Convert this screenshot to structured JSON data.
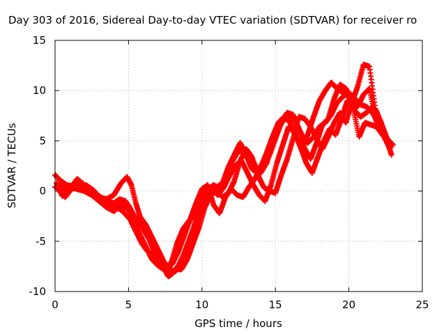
{
  "chart_data": {
    "type": "scatter",
    "title": "Day 303 of 2016, Sidereal Day-to-day VTEC variation (SDTVAR) for receiver ro",
    "xlabel": "GPS time / hours",
    "ylabel": "SDTVAR / TECUs",
    "xlim": [
      0,
      25
    ],
    "ylim": [
      -10,
      15
    ],
    "xticks": [
      "0",
      "5",
      "10",
      "15",
      "20",
      "25"
    ],
    "yticks": [
      "-10",
      "-5",
      "0",
      "5",
      "10",
      "15"
    ],
    "grid": true,
    "marker": "plus",
    "color": "#ff0000",
    "series": [
      {
        "points": [
          [
            0.0,
            1.6
          ],
          [
            0.4,
            1.0
          ],
          [
            0.8,
            0.6
          ],
          [
            1.2,
            0.5
          ],
          [
            1.6,
            0.4
          ],
          [
            2.0,
            0.3
          ],
          [
            2.5,
            -0.2
          ],
          [
            3.0,
            -0.8
          ],
          [
            3.5,
            -1.4
          ],
          [
            4.0,
            -1.8
          ],
          [
            4.5,
            -1.2
          ],
          [
            5.0,
            -1.4
          ],
          [
            5.4,
            -2.6
          ],
          [
            5.8,
            -3.4
          ],
          [
            6.2,
            -4.0
          ],
          [
            6.6,
            -5.0
          ],
          [
            7.0,
            -6.2
          ],
          [
            7.4,
            -7.6
          ],
          [
            7.7,
            -8.5
          ],
          [
            8.0,
            -8.2
          ],
          [
            8.4,
            -7.4
          ],
          [
            8.8,
            -6.2
          ],
          [
            9.2,
            -4.6
          ],
          [
            9.6,
            -3.2
          ],
          [
            10.0,
            -1.2
          ],
          [
            10.4,
            0.2
          ],
          [
            10.8,
            0.6
          ],
          [
            11.2,
            0.2
          ],
          [
            11.6,
            1.0
          ],
          [
            12.0,
            2.8
          ],
          [
            12.4,
            3.8
          ],
          [
            12.8,
            4.2
          ],
          [
            13.2,
            3.8
          ],
          [
            13.6,
            2.6
          ],
          [
            14.0,
            1.8
          ],
          [
            14.4,
            2.8
          ],
          [
            14.8,
            4.6
          ],
          [
            15.2,
            6.2
          ],
          [
            15.6,
            7.2
          ],
          [
            16.0,
            7.5
          ],
          [
            16.4,
            6.8
          ],
          [
            16.8,
            5.6
          ],
          [
            17.2,
            4.8
          ],
          [
            17.6,
            5.4
          ],
          [
            18.0,
            6.4
          ],
          [
            18.4,
            6.8
          ],
          [
            18.8,
            7.6
          ],
          [
            19.2,
            8.8
          ],
          [
            19.6,
            9.4
          ],
          [
            20.0,
            9.8
          ],
          [
            20.4,
            9.2
          ],
          [
            20.8,
            8.6
          ],
          [
            21.2,
            8.4
          ],
          [
            21.6,
            7.8
          ],
          [
            22.0,
            6.8
          ],
          [
            22.4,
            5.8
          ],
          [
            22.9,
            4.4
          ]
        ]
      },
      {
        "points": [
          [
            0.0,
            0.4
          ],
          [
            0.4,
            0.2
          ],
          [
            0.8,
            0.3
          ],
          [
            1.2,
            0.6
          ],
          [
            1.6,
            0.6
          ],
          [
            2.0,
            0.2
          ],
          [
            2.5,
            -0.3
          ],
          [
            3.0,
            -0.6
          ],
          [
            3.5,
            -0.8
          ],
          [
            4.0,
            -0.4
          ],
          [
            4.5,
            0.8
          ],
          [
            4.9,
            1.4
          ],
          [
            5.2,
            0.6
          ],
          [
            5.5,
            -1.2
          ],
          [
            5.8,
            -2.6
          ],
          [
            6.2,
            -3.4
          ],
          [
            6.6,
            -4.6
          ],
          [
            7.0,
            -5.8
          ],
          [
            7.4,
            -7.0
          ],
          [
            7.8,
            -7.8
          ],
          [
            8.2,
            -8.0
          ],
          [
            8.6,
            -7.0
          ],
          [
            9.0,
            -5.4
          ],
          [
            9.4,
            -3.8
          ],
          [
            9.8,
            -1.8
          ],
          [
            10.2,
            -0.2
          ],
          [
            10.6,
            0.4
          ],
          [
            11.0,
            0.4
          ],
          [
            11.4,
            0.8
          ],
          [
            11.8,
            2.4
          ],
          [
            12.2,
            3.6
          ],
          [
            12.6,
            4.8
          ],
          [
            13.0,
            3.6
          ],
          [
            13.4,
            2.2
          ],
          [
            13.8,
            1.8
          ],
          [
            14.2,
            2.4
          ],
          [
            14.6,
            3.6
          ],
          [
            15.0,
            5.2
          ],
          [
            15.4,
            6.8
          ],
          [
            15.8,
            7.8
          ],
          [
            16.2,
            7.6
          ],
          [
            16.6,
            6.2
          ],
          [
            17.0,
            4.2
          ],
          [
            17.4,
            3.2
          ],
          [
            17.8,
            4.8
          ],
          [
            18.2,
            6.6
          ],
          [
            18.6,
            7.2
          ],
          [
            19.0,
            9.2
          ],
          [
            19.4,
            10.6
          ],
          [
            19.8,
            10.2
          ],
          [
            20.2,
            9.0
          ],
          [
            20.6,
            8.4
          ],
          [
            21.0,
            9.6
          ],
          [
            21.4,
            10.2
          ],
          [
            21.8,
            7.4
          ],
          [
            22.2,
            6.4
          ],
          [
            22.6,
            5.0
          ],
          [
            22.9,
            3.6
          ]
        ]
      },
      {
        "points": [
          [
            0.1,
            0.8
          ],
          [
            0.5,
            -0.5
          ],
          [
            1.0,
            0.2
          ],
          [
            1.5,
            1.2
          ],
          [
            2.0,
            0.6
          ],
          [
            2.5,
            0.0
          ],
          [
            3.0,
            -0.5
          ],
          [
            3.5,
            -1.0
          ],
          [
            4.0,
            -1.2
          ],
          [
            4.4,
            -0.8
          ],
          [
            4.8,
            -1.0
          ],
          [
            5.2,
            -2.0
          ],
          [
            5.6,
            -3.0
          ],
          [
            6.0,
            -3.8
          ],
          [
            6.4,
            -4.8
          ],
          [
            6.8,
            -6.2
          ],
          [
            7.2,
            -7.4
          ],
          [
            7.6,
            -7.8
          ],
          [
            8.0,
            -7.2
          ],
          [
            8.4,
            -6.0
          ],
          [
            8.8,
            -4.4
          ],
          [
            9.2,
            -2.8
          ],
          [
            9.6,
            -1.2
          ],
          [
            10.0,
            0.2
          ],
          [
            10.4,
            0.6
          ],
          [
            10.8,
            -1.4
          ],
          [
            11.2,
            -2.2
          ],
          [
            11.6,
            -0.6
          ],
          [
            12.0,
            0.2
          ],
          [
            12.4,
            -0.4
          ],
          [
            12.8,
            -0.6
          ],
          [
            13.2,
            0.4
          ],
          [
            13.6,
            1.2
          ],
          [
            14.0,
            2.4
          ],
          [
            14.4,
            3.8
          ],
          [
            14.8,
            5.4
          ],
          [
            15.2,
            6.8
          ],
          [
            15.6,
            7.4
          ],
          [
            16.0,
            6.8
          ],
          [
            16.4,
            5.4
          ],
          [
            16.8,
            4.4
          ],
          [
            17.2,
            5.6
          ],
          [
            17.6,
            7.4
          ],
          [
            18.0,
            9.0
          ],
          [
            18.4,
            10.0
          ],
          [
            18.8,
            10.8
          ],
          [
            19.2,
            10.2
          ],
          [
            19.6,
            9.8
          ],
          [
            20.0,
            9.4
          ],
          [
            20.4,
            8.0
          ],
          [
            20.8,
            7.4
          ],
          [
            21.2,
            7.8
          ],
          [
            21.6,
            8.4
          ],
          [
            22.0,
            6.2
          ],
          [
            22.4,
            5.4
          ],
          [
            22.8,
            4.2
          ]
        ]
      },
      {
        "points": [
          [
            0.2,
            0.6
          ],
          [
            0.6,
            0.5
          ],
          [
            1.0,
            0.4
          ],
          [
            1.5,
            0.2
          ],
          [
            2.0,
            0.0
          ],
          [
            2.5,
            -0.4
          ],
          [
            3.0,
            -1.0
          ],
          [
            3.5,
            -1.6
          ],
          [
            4.0,
            -2.0
          ],
          [
            4.5,
            -1.4
          ],
          [
            5.0,
            -1.8
          ],
          [
            5.4,
            -3.2
          ],
          [
            5.8,
            -4.4
          ],
          [
            6.2,
            -5.6
          ],
          [
            6.6,
            -6.8
          ],
          [
            7.0,
            -7.4
          ],
          [
            7.4,
            -7.8
          ],
          [
            7.8,
            -8.4
          ],
          [
            8.2,
            -7.8
          ],
          [
            8.6,
            -7.8
          ],
          [
            9.0,
            -6.8
          ],
          [
            9.4,
            -5.2
          ],
          [
            9.8,
            -3.6
          ],
          [
            10.2,
            -1.6
          ],
          [
            10.6,
            -0.4
          ],
          [
            11.0,
            0.0
          ],
          [
            11.4,
            -0.6
          ],
          [
            11.8,
            -0.2
          ],
          [
            12.2,
            1.0
          ],
          [
            12.6,
            3.0
          ],
          [
            13.0,
            4.2
          ],
          [
            13.4,
            3.4
          ],
          [
            13.8,
            1.6
          ],
          [
            14.2,
            0.4
          ],
          [
            14.6,
            0.0
          ],
          [
            15.0,
            -0.2
          ],
          [
            15.4,
            1.6
          ],
          [
            15.8,
            3.2
          ],
          [
            16.2,
            5.2
          ],
          [
            16.6,
            7.4
          ],
          [
            17.0,
            7.2
          ],
          [
            17.4,
            6.4
          ],
          [
            17.8,
            5.2
          ],
          [
            18.2,
            4.2
          ],
          [
            18.6,
            5.4
          ],
          [
            19.0,
            6.8
          ],
          [
            19.4,
            7.8
          ],
          [
            19.8,
            6.8
          ],
          [
            20.2,
            8.8
          ],
          [
            20.6,
            10.4
          ],
          [
            21.0,
            12.6
          ],
          [
            21.4,
            12.4
          ],
          [
            21.8,
            8.2
          ],
          [
            22.2,
            6.8
          ],
          [
            22.6,
            5.2
          ],
          [
            23.0,
            4.6
          ]
        ]
      },
      {
        "points": [
          [
            0.3,
            0.0
          ],
          [
            0.7,
            -0.6
          ],
          [
            1.1,
            0.2
          ],
          [
            1.6,
            0.4
          ],
          [
            2.1,
            0.6
          ],
          [
            2.6,
            0.1
          ],
          [
            3.1,
            -0.7
          ],
          [
            3.6,
            -1.2
          ],
          [
            4.1,
            -1.5
          ],
          [
            4.6,
            -2.0
          ],
          [
            5.1,
            -2.8
          ],
          [
            5.5,
            -4.0
          ],
          [
            5.9,
            -5.2
          ],
          [
            6.3,
            -6.0
          ],
          [
            6.7,
            -6.4
          ],
          [
            7.1,
            -7.0
          ],
          [
            7.5,
            -7.6
          ],
          [
            7.9,
            -7.2
          ],
          [
            8.3,
            -5.2
          ],
          [
            8.7,
            -3.8
          ],
          [
            9.1,
            -3.0
          ],
          [
            9.5,
            -2.4
          ],
          [
            9.9,
            -0.8
          ],
          [
            10.3,
            0.3
          ],
          [
            10.7,
            0.1
          ],
          [
            11.1,
            -0.4
          ],
          [
            11.5,
            0.4
          ],
          [
            11.9,
            1.6
          ],
          [
            12.3,
            2.6
          ],
          [
            12.7,
            3.0
          ],
          [
            13.1,
            1.8
          ],
          [
            13.5,
            0.6
          ],
          [
            13.9,
            -0.4
          ],
          [
            14.3,
            -1.0
          ],
          [
            14.7,
            0.6
          ],
          [
            15.1,
            2.8
          ],
          [
            15.5,
            4.6
          ],
          [
            15.9,
            6.4
          ],
          [
            16.3,
            5.8
          ],
          [
            16.7,
            4.4
          ],
          [
            17.1,
            2.8
          ],
          [
            17.5,
            1.8
          ],
          [
            17.9,
            3.4
          ],
          [
            18.3,
            5.0
          ],
          [
            18.7,
            6.2
          ],
          [
            19.1,
            5.6
          ],
          [
            19.5,
            7.2
          ],
          [
            19.9,
            9.0
          ],
          [
            20.3,
            8.2
          ],
          [
            20.7,
            5.4
          ],
          [
            21.1,
            6.8
          ],
          [
            21.5,
            6.6
          ],
          [
            21.9,
            6.4
          ],
          [
            22.3,
            5.6
          ],
          [
            22.7,
            4.8
          ]
        ]
      }
    ]
  }
}
